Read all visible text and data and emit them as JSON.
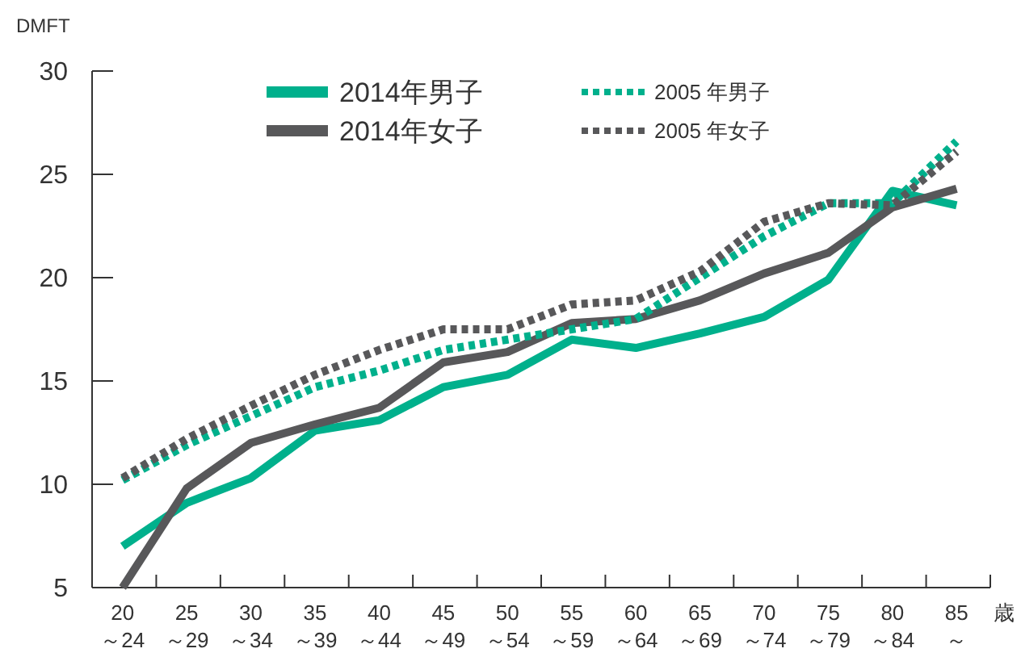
{
  "chart_data": {
    "type": "line",
    "ylabel": "DMFT",
    "xlabel": "歳",
    "categories": [
      "20\n～24",
      "25\n～29",
      "30\n～34",
      "35\n～39",
      "40\n～44",
      "45\n～49",
      "50\n～54",
      "55\n～59",
      "60\n～64",
      "65\n～69",
      "70\n～74",
      "75\n～79",
      "80\n～84",
      "85\n～"
    ],
    "series": [
      {
        "name": "2014年男子",
        "color": "#00b08c",
        "line_style": "solid",
        "values": [
          7.0,
          9.1,
          10.3,
          12.6,
          13.1,
          14.7,
          15.3,
          17.0,
          16.6,
          17.3,
          18.1,
          19.9,
          24.2,
          23.5
        ]
      },
      {
        "name": "2014年女子",
        "color": "#58585a",
        "line_style": "solid",
        "values": [
          5.0,
          9.8,
          12.0,
          12.9,
          13.7,
          15.9,
          16.4,
          17.8,
          18.0,
          18.9,
          20.2,
          21.2,
          23.4,
          24.3
        ]
      },
      {
        "name": "2005 年男子",
        "color": "#00b08c",
        "line_style": "dotted",
        "values": [
          10.2,
          11.9,
          13.3,
          14.7,
          15.5,
          16.5,
          17.0,
          17.5,
          18.0,
          20.0,
          22.0,
          23.6,
          23.6,
          26.6
        ]
      },
      {
        "name": "2005 年女子",
        "color": "#58585a",
        "line_style": "dotted",
        "values": [
          10.3,
          12.2,
          13.8,
          15.3,
          16.5,
          17.5,
          17.5,
          18.7,
          18.9,
          20.3,
          22.7,
          23.6,
          23.5,
          26.1
        ]
      }
    ],
    "ylim": [
      5,
      30
    ],
    "yticks": [
      5,
      10,
      15,
      20,
      25,
      30
    ],
    "grid": false,
    "legend": "top",
    "marker": "none"
  }
}
